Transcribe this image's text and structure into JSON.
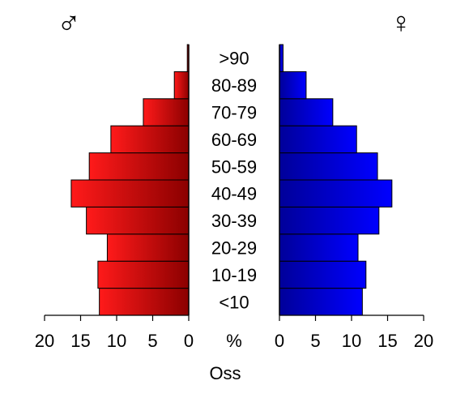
{
  "chart_data": {
    "type": "bar",
    "orientation": "horizontal",
    "layout": "population-pyramid",
    "categories": [
      "<10",
      "10-19",
      "20-29",
      "30-39",
      "40-49",
      "50-59",
      "60-69",
      "70-79",
      "80-89",
      ">90"
    ],
    "series": [
      {
        "name": "♂",
        "side": "left",
        "color_dark": "#8b0000",
        "color_light": "#ff1a1a",
        "values": [
          12.4,
          12.6,
          11.3,
          14.2,
          16.3,
          13.8,
          10.8,
          6.3,
          2.0,
          0.2
        ]
      },
      {
        "name": "♀",
        "side": "right",
        "color_dark": "#000099",
        "color_light": "#0000ff",
        "values": [
          11.5,
          12.0,
          10.9,
          13.8,
          15.6,
          13.6,
          10.7,
          7.4,
          3.7,
          0.5
        ]
      }
    ],
    "xlim": [
      0,
      20
    ],
    "tick_values": [
      0,
      5,
      10,
      15,
      20
    ],
    "left_tick_labels": [
      "20",
      "15",
      "10",
      "5",
      "0"
    ],
    "right_tick_labels": [
      "0",
      "5",
      "10",
      "15",
      "20"
    ],
    "center_label": "%",
    "xlabel": "Oss",
    "grid": false
  }
}
